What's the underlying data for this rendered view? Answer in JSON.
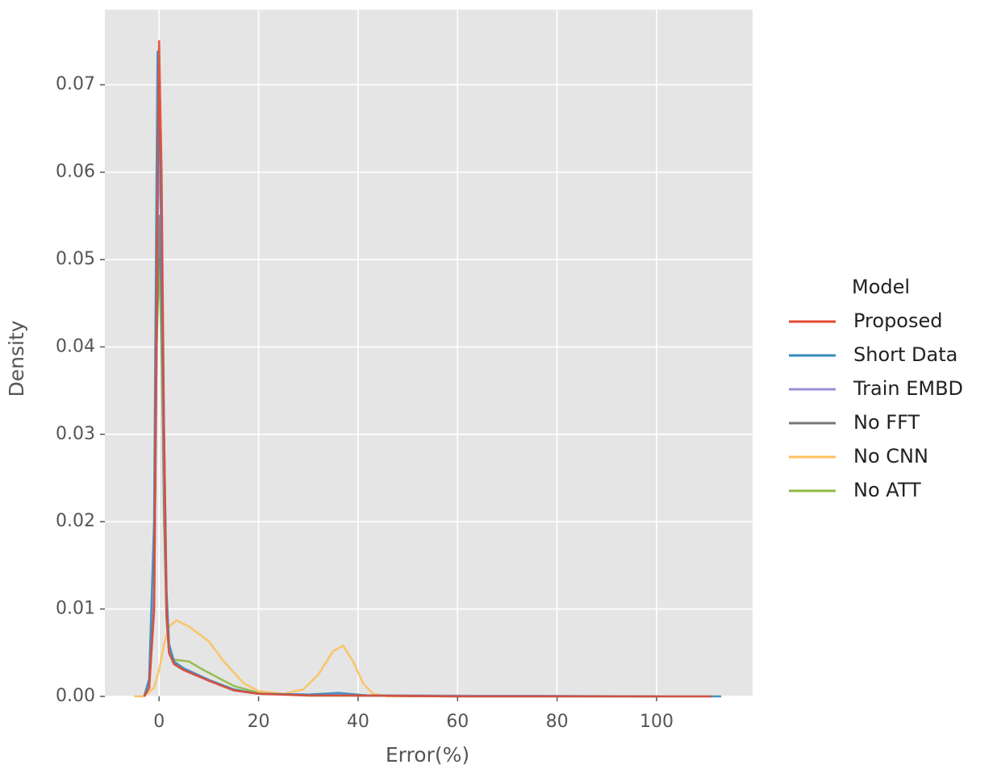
{
  "chart_data": {
    "type": "line",
    "xlabel": "Error(%)",
    "ylabel": "Density",
    "xlim": [
      -10.9,
      119.3
    ],
    "ylim": [
      0,
      0.0786
    ],
    "xticks": [
      0,
      20,
      40,
      60,
      80,
      100
    ],
    "yticks": [
      {
        "value": 0,
        "label": "0.00"
      },
      {
        "value": 0.01,
        "label": "0.01"
      },
      {
        "value": 0.02,
        "label": "0.02"
      },
      {
        "value": 0.03,
        "label": "0.03"
      },
      {
        "value": 0.04,
        "label": "0.04"
      },
      {
        "value": 0.05,
        "label": "0.05"
      },
      {
        "value": 0.06,
        "label": "0.06"
      },
      {
        "value": 0.07,
        "label": "0.07"
      }
    ],
    "grid": true,
    "legend_title": "Model",
    "legend_position": "right",
    "series": [
      {
        "name": "Proposed",
        "color": "#E24A33",
        "x": [
          -3,
          -2,
          -1,
          -0.5,
          0,
          0.5,
          1,
          1.5,
          2,
          3,
          5,
          10,
          15,
          20,
          30,
          40,
          60,
          111
        ],
        "values": [
          0,
          0.001,
          0.01,
          0.045,
          0.075,
          0.06,
          0.03,
          0.01,
          0.005,
          0.0037,
          0.003,
          0.0018,
          0.0007,
          0.0003,
          0.0001,
          0.0001,
          0,
          0
        ]
      },
      {
        "name": "Short Data",
        "color": "#348ABD",
        "x": [
          -3,
          -2,
          -1,
          -0.5,
          -0.3,
          0.3,
          1,
          1.5,
          2,
          3,
          5,
          10,
          15,
          20,
          30,
          36,
          42,
          60,
          113
        ],
        "values": [
          0,
          0.002,
          0.02,
          0.06,
          0.0738,
          0.06,
          0.03,
          0.012,
          0.006,
          0.004,
          0.0032,
          0.0019,
          0.0008,
          0.0003,
          0.0002,
          0.0004,
          0.0001,
          0,
          0
        ]
      },
      {
        "name": "Train EMBD",
        "color": "#988ED5",
        "x": [
          -3,
          -2,
          -1,
          -0.5,
          0,
          0.5,
          1,
          1.5,
          2,
          3,
          5,
          10,
          15,
          20,
          40,
          100
        ],
        "values": [
          0,
          0.001,
          0.012,
          0.045,
          0.065,
          0.05,
          0.025,
          0.01,
          0.005,
          0.0037,
          0.003,
          0.0018,
          0.0007,
          0.0003,
          0.0001,
          0
        ]
      },
      {
        "name": "No FFT",
        "color": "#777777",
        "x": [
          -3,
          -2,
          -1,
          -0.5,
          0,
          0.5,
          1,
          1.5,
          2,
          3,
          5,
          10,
          15,
          20,
          40,
          100
        ],
        "values": [
          0,
          0.001,
          0.01,
          0.04,
          0.055,
          0.045,
          0.022,
          0.009,
          0.005,
          0.0037,
          0.003,
          0.0018,
          0.0007,
          0.0003,
          0.0001,
          0
        ]
      },
      {
        "name": "No CNN",
        "color": "#FBC15E",
        "x": [
          -5,
          -3,
          -1,
          0,
          1,
          2,
          3.5,
          6,
          10,
          13,
          17,
          20,
          25,
          29,
          32,
          35,
          37,
          39,
          41,
          43,
          46,
          60
        ],
        "values": [
          0,
          0,
          0.001,
          0.003,
          0.006,
          0.008,
          0.0087,
          0.008,
          0.0063,
          0.004,
          0.0015,
          0.0006,
          0.0003,
          0.0008,
          0.0025,
          0.0052,
          0.0058,
          0.004,
          0.0015,
          0.0003,
          0,
          0
        ]
      },
      {
        "name": "No ATT",
        "color": "#8EBA42",
        "x": [
          -3,
          -2,
          -1,
          -0.5,
          0,
          0.5,
          1,
          1.5,
          2,
          3,
          6,
          9,
          15,
          20,
          30,
          100
        ],
        "values": [
          0,
          0.001,
          0.01,
          0.04,
          0.05,
          0.04,
          0.02,
          0.009,
          0.005,
          0.0042,
          0.004,
          0.003,
          0.0012,
          0.0004,
          0.0001,
          0
        ]
      }
    ]
  }
}
